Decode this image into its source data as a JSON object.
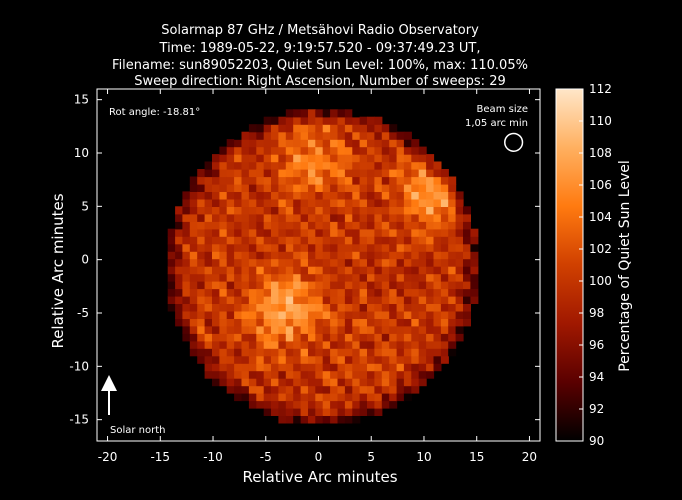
{
  "chart_data": {
    "type": "heatmap",
    "title_lines": [
      "Solarmap 87 GHz / Metsähovi Radio Observatory",
      "Time: 1989-05-22,  9:19:57.520 - 09:37:49.23 UT,",
      "Filename: sun89052203, Quiet Sun Level: 100%, max: 110.05%",
      "Sweep direction: Right Ascension, Number of sweeps: 29"
    ],
    "xlabel": "Relative Arc minutes",
    "ylabel": "Relative Arc minutes",
    "xlim": [
      -21,
      21
    ],
    "ylim": [
      -17,
      16
    ],
    "xticks": [
      -20,
      -15,
      -10,
      -5,
      0,
      5,
      10,
      15,
      20
    ],
    "yticks": [
      -15,
      -10,
      -5,
      0,
      5,
      10,
      15
    ],
    "colorbar": {
      "label": "Percentage of Quiet Sun Level",
      "range": [
        90,
        112
      ],
      "ticks": [
        90,
        92,
        94,
        96,
        98,
        100,
        102,
        104,
        106,
        108,
        110,
        112
      ],
      "colormap": [
        "#000000",
        "#5a0000",
        "#a01800",
        "#d04000",
        "#ff7a10",
        "#ffb060",
        "#ffe6c8"
      ]
    },
    "disk": {
      "center": [
        0,
        -1
      ],
      "radius": 14.5,
      "mean_level": 100
    },
    "bright_regions": [
      {
        "x": -3.5,
        "y": -5,
        "level": 108
      },
      {
        "x": 10.5,
        "y": 6,
        "level": 107
      },
      {
        "x": -1,
        "y": 9,
        "level": 105
      }
    ],
    "annotations": {
      "rot_angle": "Rot angle: -18.81°",
      "beam_size_line1": "Beam size",
      "beam_size_line2": "1,05 arc min",
      "beam_position": [
        18.5,
        11
      ],
      "beam_diameter": 1.05,
      "solar_north": "Solar north",
      "north_arrow_angle_deg": 0
    },
    "grid": false
  }
}
